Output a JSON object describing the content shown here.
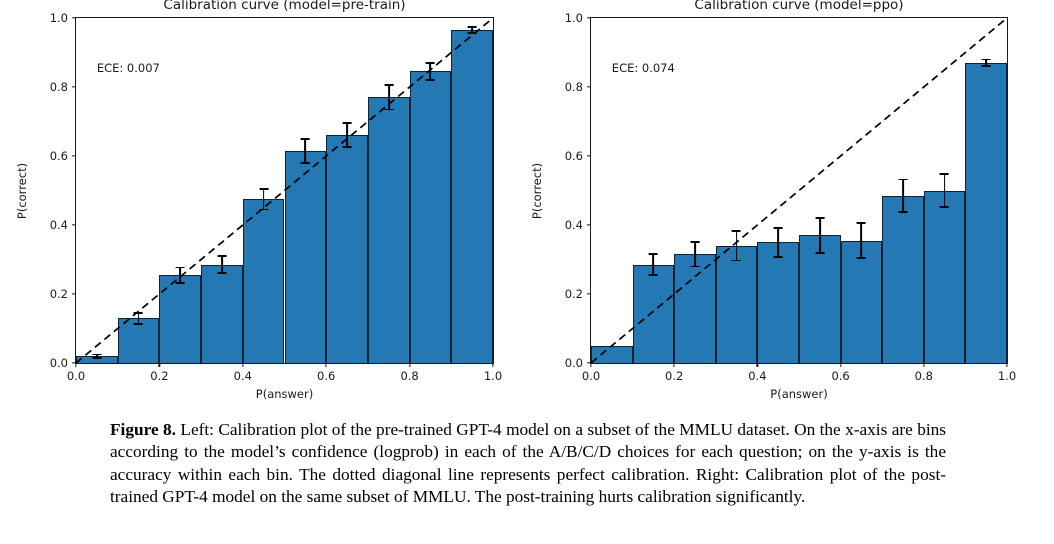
{
  "page": {
    "background": "#ffffff"
  },
  "caption": {
    "label": "Figure 8.",
    "text": "Left: Calibration plot of the pre-trained GPT-4 model on a subset of the MMLU dataset. On the x-axis are bins according to the model’s confidence (logprob) in each of the A/B/C/D choices for each question; on the y-axis is the accuracy within each bin. The dotted diagonal line represents perfect calibration. Right: Calibration plot of the post-trained GPT-4 model on the same subset of MMLU. The post-training hurts calibration significantly."
  },
  "chart_data": [
    {
      "type": "bar",
      "title": "Calibration curve (model=pre-train)",
      "annotation": "ECE: 0.007",
      "xlabel": "P(answer)",
      "ylabel": "P(correct)",
      "xlim": [
        0.0,
        1.0
      ],
      "ylim": [
        0.0,
        1.0
      ],
      "xticks": [
        "0.0",
        "0.2",
        "0.4",
        "0.6",
        "0.8",
        "1.0"
      ],
      "yticks": [
        "0.0",
        "0.2",
        "0.4",
        "0.6",
        "0.8",
        "1.0"
      ],
      "bin_edges": [
        0.0,
        0.1,
        0.2,
        0.3,
        0.4,
        0.5,
        0.6,
        0.7,
        0.8,
        0.9,
        1.0
      ],
      "values": [
        0.02,
        0.13,
        0.255,
        0.285,
        0.475,
        0.615,
        0.66,
        0.77,
        0.845,
        0.965
      ],
      "errors": [
        0.005,
        0.016,
        0.022,
        0.025,
        0.03,
        0.035,
        0.035,
        0.035,
        0.025,
        0.008
      ],
      "bar_color": "#2478b4",
      "bar_edge_color": "#10222e",
      "diagonal": {
        "style": "dashed",
        "color": "#000000",
        "meaning": "perfect calibration"
      },
      "grid": false,
      "legend": null
    },
    {
      "type": "bar",
      "title": "Calibration curve (model=ppo)",
      "annotation": "ECE: 0.074",
      "xlabel": "P(answer)",
      "ylabel": "P(correct)",
      "xlim": [
        0.0,
        1.0
      ],
      "ylim": [
        0.0,
        1.0
      ],
      "xticks": [
        "0.0",
        "0.2",
        "0.4",
        "0.6",
        "0.8",
        "1.0"
      ],
      "yticks": [
        "0.0",
        "0.2",
        "0.4",
        "0.6",
        "0.8",
        "1.0"
      ],
      "bin_edges": [
        0.0,
        0.1,
        0.2,
        0.3,
        0.4,
        0.5,
        0.6,
        0.7,
        0.8,
        0.9,
        1.0
      ],
      "values": [
        0.05,
        0.285,
        0.315,
        0.34,
        0.35,
        0.37,
        0.355,
        0.485,
        0.5,
        0.87
      ],
      "errors": [
        0,
        0.03,
        0.035,
        0.043,
        0.042,
        0.05,
        0.051,
        0.047,
        0.047,
        0.01
      ],
      "bar_color": "#2478b4",
      "bar_edge_color": "#10222e",
      "diagonal": {
        "style": "dashed",
        "color": "#000000",
        "meaning": "perfect calibration"
      },
      "grid": false,
      "legend": null
    }
  ]
}
